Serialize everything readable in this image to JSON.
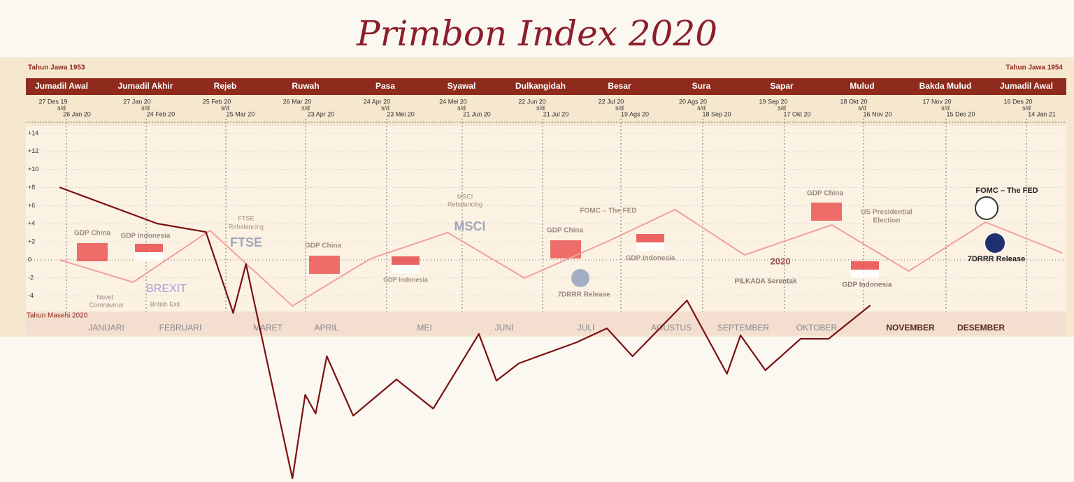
{
  "chart_data": {
    "type": "line",
    "title": "Primbon Index 2020",
    "javanese_year_start": "Tahun Jawa 1953",
    "javanese_year_end": "Tahun Jawa 1954",
    "gregorian_year": "Tahun Masehi 2020",
    "javanese_months": [
      {
        "name": "Jumadil Awal",
        "start": "27 Des 19",
        "sep": "s/d",
        "end": "26 Jan 20"
      },
      {
        "name": "Jumadil Akhir",
        "start": "27 Jan 20",
        "sep": "s/d",
        "end": "24 Feb 20"
      },
      {
        "name": "Rejeb",
        "start": "25 Feb 20",
        "sep": "s/d",
        "end": "25 Mar 20"
      },
      {
        "name": "Ruwah",
        "start": "26 Mar 20",
        "sep": "s/d",
        "end": "23 Apr 20"
      },
      {
        "name": "Pasa",
        "start": "24 Apr 20",
        "sep": "s/d",
        "end": "23 Mei 20"
      },
      {
        "name": "Syawal",
        "start": "24 Mei 20",
        "sep": "s/d",
        "end": "21 Jun 20"
      },
      {
        "name": "Dulkangidah",
        "start": "22 Jun 20",
        "sep": "s/d",
        "end": "21 Jul 20"
      },
      {
        "name": "Besar",
        "start": "22 Jul 20",
        "sep": "s/d",
        "end": "19 Ags 20"
      },
      {
        "name": "Sura",
        "start": "20 Ags 20",
        "sep": "s/d",
        "end": "18 Sep 20"
      },
      {
        "name": "Sapar",
        "start": "19 Sep 20",
        "sep": "s/d",
        "end": "17 Okt 20"
      },
      {
        "name": "Mulud",
        "start": "18 Okt 20",
        "sep": "s/d",
        "end": "16 Nov 20"
      },
      {
        "name": "Bakda Mulud",
        "start": "17 Nov 20",
        "sep": "s/d",
        "end": "15 Des 20"
      },
      {
        "name": "Jumadil Awal",
        "start": "16 Des 20",
        "sep": "s/d",
        "end": "14 Jan 21"
      }
    ],
    "categories": [
      "JANUARI",
      "FEBRUARI",
      "MARET",
      "APRIL",
      "MEI",
      "JUNI",
      "JULI",
      "AGUSTUS",
      "SEPTEMBER",
      "OKTOBER",
      "NOVEMBER",
      "DESEMBER"
    ],
    "xlim": [
      0,
      13
    ],
    "ylim": [
      -24.6,
      15
    ],
    "yticks": [
      {
        "value": 14,
        "label": "+14"
      },
      {
        "value": 12,
        "label": "+12"
      },
      {
        "value": 10,
        "label": "+10"
      },
      {
        "value": 8,
        "label": "+8"
      },
      {
        "value": 6,
        "label": "+6"
      },
      {
        "value": 4,
        "label": "+4"
      },
      {
        "value": 2,
        "label": "+2"
      },
      0,
      -2,
      -4
    ],
    "grid": true,
    "series": [
      {
        "color": "#f0a0a0",
        "x": [
          0.42,
          1.34,
          2.3,
          3.33,
          4.31,
          5.27,
          6.23,
          7.28,
          8.11,
          8.98,
          10.07,
          11.03,
          11.99,
          12.95
        ],
        "values": [
          0,
          -2.47,
          3.25,
          -5.1,
          0.15,
          3.02,
          -2.01,
          2.09,
          5.57,
          0.54,
          3.87,
          -1.24,
          4.18,
          0.77
        ]
      },
      {
        "color": "#7a1010",
        "x": [
          0.42,
          1.64,
          2.25,
          2.59,
          2.75,
          3.33,
          3.49,
          3.62,
          3.76,
          4.09,
          4.63,
          5.09,
          5.66,
          5.88,
          6.16,
          6.88,
          7.26,
          7.58,
          8.26,
          8.76,
          8.93,
          9.24,
          9.68,
          10.03,
          10.55
        ],
        "values": [
          8.04,
          4.02,
          3.09,
          -5.88,
          -0.46,
          -24.2,
          -14.93,
          -17.01,
          -10.67,
          -17.25,
          -13.23,
          -16.47,
          -8.2,
          -13.38,
          -11.45,
          -9.13,
          -7.58,
          -10.67,
          -4.49,
          -12.61,
          -8.35,
          -12.22,
          -8.74,
          -8.74,
          -5.03
        ]
      }
    ],
    "annotations": [
      {
        "text": "GDP China"
      },
      {
        "text": "GDP Indonesia"
      },
      {
        "text": "Novel"
      },
      {
        "text": "Coronavirus"
      },
      {
        "text": "BREXIT"
      },
      {
        "text": "British Exit"
      },
      {
        "text": "FTSE"
      },
      {
        "text": "Rebalancing"
      },
      {
        "text": "FTSE"
      },
      {
        "text": "GDP China"
      },
      {
        "text": "GDP Indonesia"
      },
      {
        "text": "MSCI"
      },
      {
        "text": "Rebalancing"
      },
      {
        "text": "MSCI"
      },
      {
        "text": "GDP China"
      },
      {
        "text": "FOMC – The FED"
      },
      {
        "text": "7DRRR Release"
      },
      {
        "text": "GDP Indonesia"
      },
      {
        "text": "2020"
      },
      {
        "text": "PILKADA Serentak"
      },
      {
        "text": "GDP China"
      },
      {
        "text": "US Presidential"
      },
      {
        "text": "Election"
      },
      {
        "text": "GDP Indonesia"
      },
      {
        "text": "FOMC – The FED"
      },
      {
        "text": "7DRRR Release"
      }
    ]
  }
}
